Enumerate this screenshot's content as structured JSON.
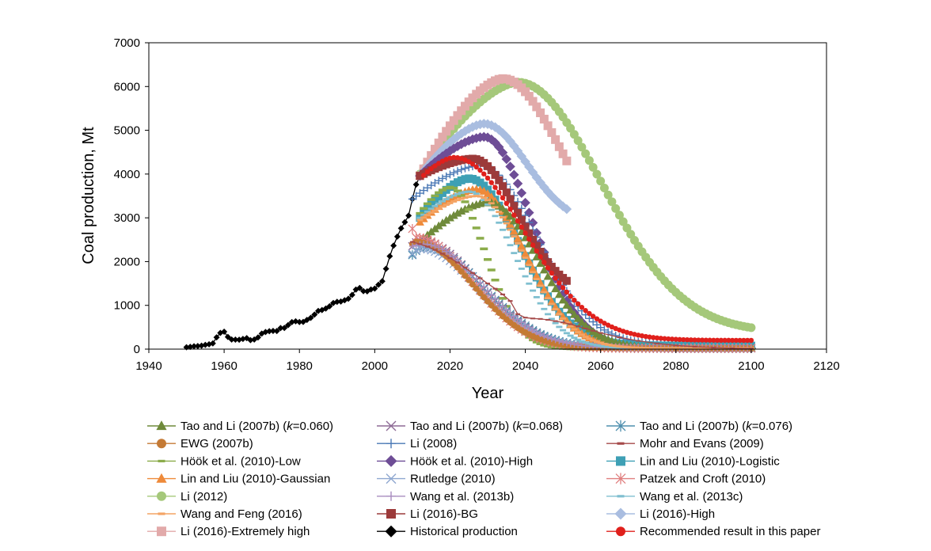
{
  "chart_data": {
    "type": "line",
    "xlabel": "Year",
    "ylabel": "Coal production, Mt",
    "xlim": [
      1940,
      2120
    ],
    "ylim": [
      0,
      7000
    ],
    "x_ticks": [
      "1940",
      "1960",
      "1980",
      "2000",
      "2020",
      "2040",
      "2060",
      "2080",
      "2100",
      "2120"
    ],
    "y_ticks": [
      "0",
      "1000",
      "2000",
      "3000",
      "4000",
      "5000",
      "6000",
      "7000"
    ],
    "grid": false,
    "legend_placement": "bottom",
    "legend": [
      {
        "label": "Tao and Li (2007b) (k=0.060)",
        "pre": "Tao and Li (2007b) (",
        "italic": "k",
        "post": "=0.060)",
        "color": "#6f8a3a",
        "marker": "triangle"
      },
      {
        "label": "Tao and Li (2007b) (k=0.068)",
        "pre": "Tao and Li (2007b) (",
        "italic": "k",
        "post": "=0.068)",
        "color": "#8d6a95",
        "marker": "x"
      },
      {
        "label": "Tao and Li (2007b) (k=0.076)",
        "pre": "Tao and Li (2007b) (",
        "italic": "k",
        "post": "=0.076)",
        "color": "#4f8fae",
        "marker": "star"
      },
      {
        "label": "EWG (2007b)",
        "pre": "EWG (2007b)",
        "color": "#c47a35",
        "marker": "circle"
      },
      {
        "label": "Li (2008)",
        "pre": "Li (2008)",
        "color": "#4a78b5",
        "marker": "plus"
      },
      {
        "label": "Mohr and Evans (2009)",
        "pre": "Mohr and Evans (2009)",
        "color": "#a54a4a",
        "marker": "dash"
      },
      {
        "label": "Höök et al. (2010)-Low",
        "pre": "Höök et al. (2010)-Low",
        "color": "#8bac4a",
        "marker": "dash"
      },
      {
        "label": "Höök et al. (2010)-High",
        "pre": "Höök et al. (2010)-High",
        "color": "#6e4d96",
        "marker": "diamond"
      },
      {
        "label": "Lin and Liu (2010)-Logistic",
        "pre": "Lin and Liu (2010)-Logistic",
        "color": "#3ea0b5",
        "marker": "square"
      },
      {
        "label": "Lin and Liu (2010)-Gaussian",
        "pre": "Lin and Liu (2010)-Gaussian",
        "color": "#ee8a3a",
        "marker": "triangle"
      },
      {
        "label": "Rutledge (2010)",
        "pre": "Rutledge (2010)",
        "color": "#8fa8d0",
        "marker": "x"
      },
      {
        "label": "Patzek and Croft (2010)",
        "pre": "Patzek and Croft (2010)",
        "color": "#e07f7f",
        "marker": "star"
      },
      {
        "label": "Li (2012)",
        "pre": "Li (2012)",
        "color": "#a5c87a",
        "marker": "circle"
      },
      {
        "label": "Wang et al. (2013b)",
        "pre": "Wang et al. (2013b)",
        "color": "#a88cbf",
        "marker": "plus"
      },
      {
        "label": "Wang et al. (2013c)",
        "pre": "Wang et al. (2013c)",
        "color": "#7fbfd0",
        "marker": "dash"
      },
      {
        "label": "Wang and Feng (2016)",
        "pre": "Wang and Feng (2016)",
        "color": "#f4a464",
        "marker": "dash"
      },
      {
        "label": "Li (2016)-BG",
        "pre": "Li (2016)-BG",
        "color": "#9c3a3a",
        "marker": "square"
      },
      {
        "label": "Li (2016)-High",
        "pre": "Li (2016)-High",
        "color": "#a9bde0",
        "marker": "diamond"
      },
      {
        "label": "Li (2016)-Extremely high",
        "pre": "Li (2016)-Extremely high",
        "color": "#e2aaaa",
        "marker": "square"
      },
      {
        "label": "Historical production",
        "pre": "Historical production",
        "color": "#000000",
        "marker": "diamond"
      },
      {
        "label": "Recommended result in this paper",
        "pre": "Recommended result in this paper",
        "color": "#e0201c",
        "marker": "circle"
      }
    ],
    "series": [
      {
        "name": "Historical production",
        "color": "#000000",
        "marker": "diamond",
        "size": 3.2,
        "line": true,
        "x": [
          1950,
          1951,
          1952,
          1953,
          1954,
          1955,
          1956,
          1957,
          1958,
          1959,
          1960,
          1961,
          1962,
          1963,
          1964,
          1965,
          1966,
          1967,
          1968,
          1969,
          1970,
          1971,
          1972,
          1973,
          1974,
          1975,
          1976,
          1977,
          1978,
          1979,
          1980,
          1981,
          1982,
          1983,
          1984,
          1985,
          1986,
          1987,
          1988,
          1989,
          1990,
          1991,
          1992,
          1993,
          1994,
          1995,
          1996,
          1997,
          1998,
          1999,
          2000,
          2001,
          2002,
          2003,
          2004,
          2005,
          2006,
          2007,
          2008,
          2009,
          2010,
          2011,
          2012,
          2013
        ],
        "y": [
          43,
          53,
          66,
          70,
          80,
          98,
          110,
          131,
          270,
          370,
          397,
          278,
          220,
          217,
          215,
          232,
          252,
          206,
          220,
          266,
          354,
          392,
          410,
          417,
          413,
          482,
          483,
          550,
          618,
          635,
          620,
          622,
          666,
          715,
          789,
          872,
          894,
          928,
          980,
          1054,
          1080,
          1087,
          1116,
          1150,
          1240,
          1361,
          1397,
          1325,
          1320,
          1364,
          1384,
          1472,
          1550,
          1835,
          2122,
          2365,
          2570,
          2760,
          2900,
          3050,
          3428,
          3760,
          3945,
          3975
        ]
      },
      {
        "name": "Li (2012)",
        "color": "#a5c87a",
        "marker": "circle",
        "size": 5.5,
        "x0": 2012,
        "x1": 2100,
        "step": 1,
        "peak": 6100,
        "peakYear": 2038,
        "rise": 13,
        "fall": 31,
        "start": 4000,
        "end": 490
      },
      {
        "name": "Li (2016)-Extremely high",
        "color": "#e2aaaa",
        "marker": "square",
        "size": 5.5,
        "x0": 2012,
        "x1": 2051,
        "step": 1,
        "peak": 6180,
        "peakYear": 2034,
        "rise": 11,
        "fall": 22,
        "start": 3960,
        "end": 4300
      },
      {
        "name": "Li (2016)-High",
        "color": "#a9bde0",
        "marker": "diamond",
        "size": 5,
        "x0": 2012,
        "x1": 2051,
        "step": 1,
        "peak": 5150,
        "peakYear": 2029,
        "rise": 9,
        "fall": 16,
        "start": 3960,
        "end": 3200
      },
      {
        "name": "Höök et al. (2010)-High",
        "color": "#6e4d96",
        "marker": "diamond",
        "size": 5,
        "x0": 2012,
        "x1": 2100,
        "step": 1,
        "peak": 4850,
        "peakYear": 2029,
        "rise": 9,
        "fall": 18,
        "start": 3960,
        "end": 20
      },
      {
        "name": "Li (2008)",
        "color": "#4a78b5",
        "marker": "plus",
        "size": 5,
        "x0": 2010,
        "x1": 2100,
        "step": 1,
        "peak": 4200,
        "peakYear": 2028,
        "rise": 10,
        "fall": 21,
        "start": 3430,
        "end": 90
      },
      {
        "name": "Li (2016)-BG",
        "color": "#9c3a3a",
        "marker": "square",
        "size": 5,
        "x0": 2012,
        "x1": 2051,
        "step": 1,
        "peak": 4350,
        "peakYear": 2026,
        "rise": 8,
        "fall": 17,
        "start": 3960,
        "end": 1560
      },
      {
        "name": "Lin and Liu (2010)-Logistic",
        "color": "#3ea0b5",
        "marker": "square",
        "size": 5,
        "x0": 2012,
        "x1": 2100,
        "step": 1,
        "peak": 3900,
        "peakYear": 2025,
        "rise": 8,
        "fall": 19,
        "start": 3000,
        "end": 80
      },
      {
        "name": "Lin and Liu (2010)-Gaussian",
        "color": "#ee8a3a",
        "marker": "triangle",
        "size": 5,
        "x0": 2012,
        "x1": 2100,
        "step": 1,
        "peak": 3650,
        "peakYear": 2027,
        "rise": 9,
        "fall": 18,
        "start": 2900,
        "end": 30
      },
      {
        "name": "Tao and Li (2007b) (k=0.060)",
        "color": "#6f8a3a",
        "marker": "triangle",
        "size": 5,
        "x0": 2012,
        "x1": 2100,
        "step": 1,
        "peak": 3350,
        "peakYear": 2030,
        "rise": 11,
        "fall": 19,
        "start": 2450,
        "end": 20
      },
      {
        "name": "Höök et al. (2010)-Low",
        "color": "#8bac4a",
        "marker": "dash",
        "size": 5,
        "x0": 2012,
        "x1": 2100,
        "step": 1,
        "peak": 3700,
        "peakYear": 2020,
        "rise": 6,
        "fall": 13,
        "start": 3100,
        "end": 0
      },
      {
        "name": "Recommended result in this paper",
        "color": "#e0201c",
        "marker": "circle",
        "size": 3.2,
        "line": true,
        "x0": 2013,
        "x1": 2100,
        "step": 1,
        "peak": 4380,
        "peakYear": 2021,
        "rise": 6,
        "fall": 26,
        "start": 3970,
        "end": 200
      },
      {
        "name": "Tao and Li (2007b) (k=0.068)",
        "color": "#8d6a95",
        "marker": "x",
        "size": 5,
        "x0": 2010,
        "x1": 2100,
        "step": 1,
        "peak": 2480,
        "peakYear": 2012,
        "rise": 4,
        "fall": 22,
        "start": 2350,
        "end": 20
      },
      {
        "name": "Tao and Li (2007b) (k=0.076)",
        "color": "#4f8fae",
        "marker": "star",
        "size": 5,
        "x0": 2010,
        "x1": 2100,
        "step": 1,
        "peak": 2350,
        "peakYear": 2013,
        "rise": 4,
        "fall": 22,
        "start": 2150,
        "end": 20
      },
      {
        "name": "Rutledge (2010)",
        "color": "#8fa8d0",
        "marker": "x",
        "size": 5,
        "x0": 2010,
        "x1": 2100,
        "step": 1,
        "peak": 2300,
        "peakYear": 2012,
        "rise": 4,
        "fall": 22,
        "start": 2180,
        "end": 20
      },
      {
        "name": "Patzek and Croft (2010)",
        "color": "#e07f7f",
        "marker": "star",
        "size": 5,
        "x0": 2010,
        "x1": 2100,
        "step": 1,
        "peak": 2550,
        "peakYear": 2011,
        "rise": 4,
        "fall": 21,
        "start": 2750,
        "end": 20
      },
      {
        "name": "EWG (2007b)",
        "color": "#c47a35",
        "marker": "circle",
        "size": 4,
        "x0": 2010,
        "x1": 2100,
        "step": 1,
        "peak": 2450,
        "peakYear": 2011,
        "rise": 4,
        "fall": 21,
        "start": 2400,
        "end": 20
      },
      {
        "name": "Wang et al. (2013b)",
        "color": "#a88cbf",
        "marker": "plus",
        "size": 4,
        "x0": 2010,
        "x1": 2100,
        "step": 1,
        "peak": 2400,
        "peakYear": 2013,
        "rise": 4,
        "fall": 22,
        "start": 2350,
        "end": 20
      },
      {
        "name": "Wang et al. (2013c)",
        "color": "#7fbfd0",
        "marker": "dash",
        "size": 4,
        "x0": 2012,
        "x1": 2100,
        "step": 1,
        "peak": 3600,
        "peakYear": 2025,
        "rise": 8,
        "fall": 17,
        "start": 3000,
        "end": 20
      },
      {
        "name": "Wang and Feng (2016)",
        "color": "#f4a464",
        "marker": "dash",
        "size": 4,
        "x0": 2012,
        "x1": 2100,
        "step": 1,
        "peak": 3500,
        "peakYear": 2027,
        "rise": 9,
        "fall": 18,
        "start": 2950,
        "end": 20
      },
      {
        "name": "Mohr and Evans (2009)",
        "color": "#a54a4a",
        "marker": "dash",
        "size": 3,
        "line": true,
        "x": [
          2010,
          2012,
          2014,
          2016,
          2018,
          2020,
          2022,
          2024,
          2026,
          2028,
          2030,
          2032,
          2034,
          2036,
          2038,
          2040,
          2042,
          2044,
          2046,
          2048,
          2050,
          2052,
          2054,
          2056,
          2058,
          2060,
          2065,
          2070,
          2075,
          2080,
          2085,
          2090,
          2095,
          2100
        ],
        "y": [
          2450,
          2400,
          2340,
          2270,
          2180,
          2080,
          1980,
          1860,
          1740,
          1620,
          1500,
          1380,
          1250,
          1100,
          800,
          720,
          700,
          690,
          670,
          640,
          610,
          570,
          520,
          470,
          420,
          370,
          270,
          190,
          130,
          85,
          55,
          35,
          20,
          12
        ]
      }
    ]
  }
}
